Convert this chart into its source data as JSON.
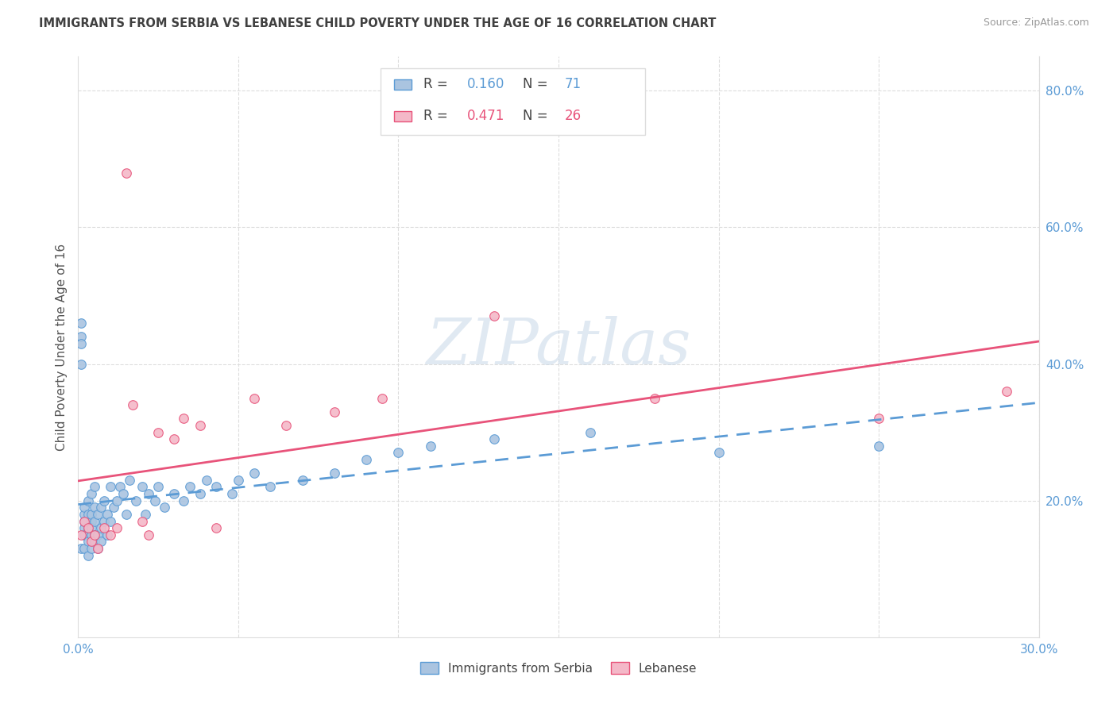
{
  "title": "IMMIGRANTS FROM SERBIA VS LEBANESE CHILD POVERTY UNDER THE AGE OF 16 CORRELATION CHART",
  "source": "Source: ZipAtlas.com",
  "ylabel": "Child Poverty Under the Age of 16",
  "xlim": [
    0.0,
    0.3
  ],
  "ylim": [
    0.0,
    0.85
  ],
  "xtick_positions": [
    0.0,
    0.05,
    0.1,
    0.15,
    0.2,
    0.25,
    0.3
  ],
  "xticklabels": [
    "0.0%",
    "",
    "",
    "",
    "",
    "",
    "30.0%"
  ],
  "ytick_positions": [
    0.0,
    0.2,
    0.4,
    0.6,
    0.8
  ],
  "yticklabels_right": [
    "",
    "20.0%",
    "40.0%",
    "60.0%",
    "80.0%"
  ],
  "serbia_fill": "#aac4e0",
  "serbia_edge": "#5b9bd5",
  "lebanese_fill": "#f4b8c8",
  "lebanese_edge": "#e8537a",
  "serbia_R": "0.160",
  "serbia_N": "71",
  "lebanese_R": "0.471",
  "lebanese_N": "26",
  "legend_label_serbia": "Immigrants from Serbia",
  "legend_label_lebanese": "Lebanese",
  "watermark": "ZIPatlas",
  "grid_color": "#dddddd",
  "tick_color": "#5b9bd5",
  "title_color": "#404040",
  "source_color": "#999999",
  "ylabel_color": "#555555"
}
